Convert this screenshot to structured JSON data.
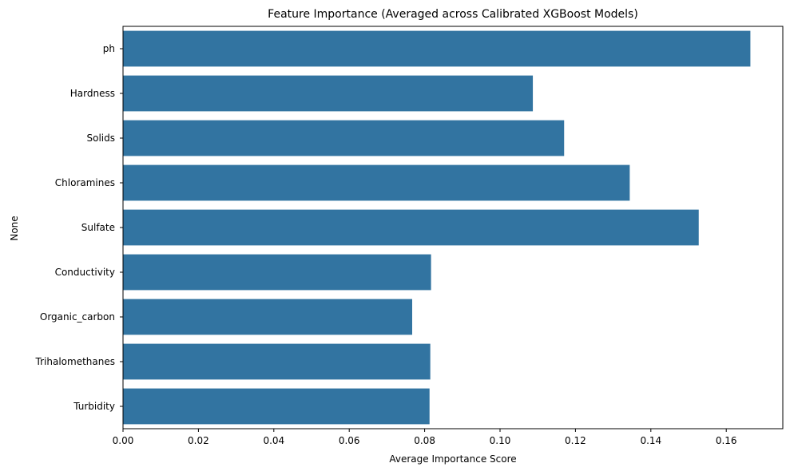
{
  "chart_data": {
    "type": "bar",
    "orientation": "horizontal",
    "title": "Feature Importance (Averaged across Calibrated XGBoost Models)",
    "xlabel": "Average Importance Score",
    "ylabel": "None",
    "categories": [
      "ph",
      "Hardness",
      "Solids",
      "Chloramines",
      "Sulfate",
      "Conductivity",
      "Organic_carbon",
      "Trihalomethanes",
      "Turbidity"
    ],
    "values": [
      0.1664,
      0.1087,
      0.117,
      0.1344,
      0.1527,
      0.0817,
      0.0767,
      0.0815,
      0.0813
    ],
    "xlim": [
      0,
      0.175
    ],
    "xticks": [
      0.0,
      0.02,
      0.04,
      0.06,
      0.08,
      0.1,
      0.12,
      0.14,
      0.16
    ],
    "xtick_labels": [
      "0.00",
      "0.02",
      "0.04",
      "0.06",
      "0.08",
      "0.10",
      "0.12",
      "0.14",
      "0.16"
    ],
    "bar_color": "#3274a1",
    "grid": false,
    "legend": "none"
  }
}
